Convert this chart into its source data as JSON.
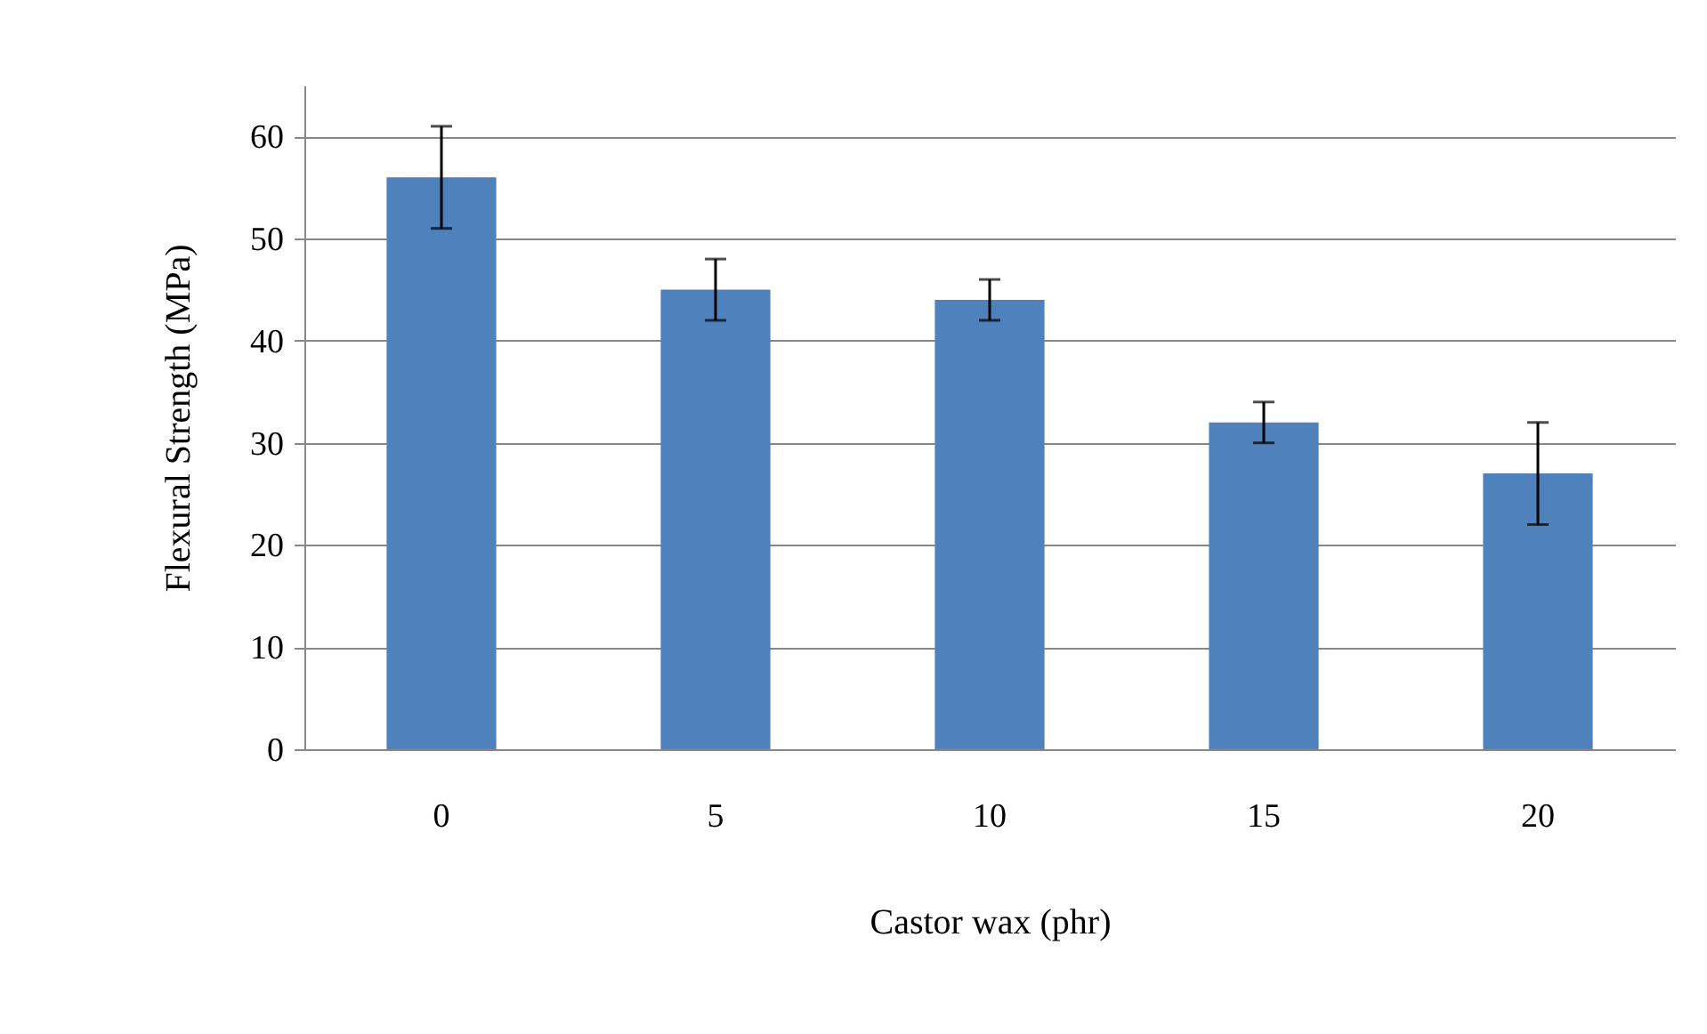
{
  "chart_data": {
    "type": "bar",
    "xlabel": "Castor wax (phr)",
    "ylabel": "Flexural Strength (MPa)",
    "categories": [
      "0",
      "5",
      "10",
      "15",
      "20"
    ],
    "values": [
      56,
      45,
      44,
      32,
      27
    ],
    "errors": [
      5,
      3,
      2,
      2,
      5
    ],
    "color": "#4f81bd",
    "ylim": [
      0,
      65
    ],
    "yticks": [
      0,
      10,
      20,
      30,
      40,
      50,
      60
    ],
    "grid": "y"
  }
}
